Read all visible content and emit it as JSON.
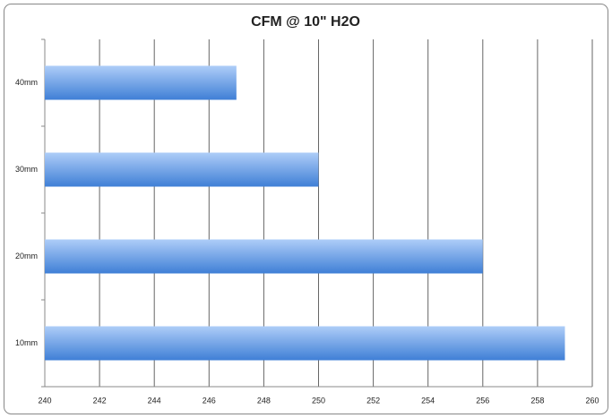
{
  "chart_data": {
    "type": "barh",
    "title": "CFM @ 10\" H2O",
    "categories": [
      "10mm",
      "20mm",
      "30mm",
      "40mm"
    ],
    "values": [
      259,
      256,
      250,
      247
    ],
    "color": "#3f7fd6",
    "xlim": [
      240,
      260
    ],
    "xticks": [
      240,
      242,
      244,
      246,
      248,
      250,
      252,
      254,
      256,
      258,
      260
    ],
    "grid": true
  }
}
